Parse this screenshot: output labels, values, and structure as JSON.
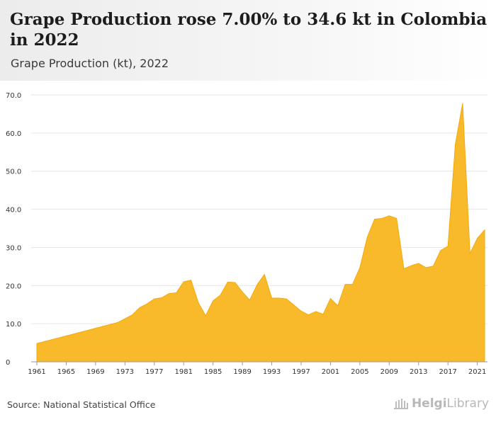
{
  "header": {
    "title": "Grape Production rose 7.00% to 34.6 kt in Colombia in 2022",
    "subtitle": "Grape Production (kt), 2022"
  },
  "footer": {
    "source": "Source: National Statistical Office",
    "brand_bold": "Helgi",
    "brand_light": "Library"
  },
  "colors": {
    "area_fill": "#F8BA2A",
    "area_stroke": "#F2A90E",
    "grid": "#e6e6e6",
    "baseline": "#9a9a9a"
  },
  "chart_data": {
    "type": "area",
    "title": "Grape Production (kt), 2022",
    "xlabel": "",
    "ylabel": "",
    "ylim": [
      0,
      70
    ],
    "yticks": [
      "0",
      "10.0",
      "20.0",
      "30.0",
      "40.0",
      "50.0",
      "60.0",
      "70.0"
    ],
    "xticks": [
      "1961",
      "1965",
      "1969",
      "1973",
      "1977",
      "1981",
      "1985",
      "1989",
      "1993",
      "1997",
      "2001",
      "2005",
      "2009",
      "2013",
      "2017",
      "2021"
    ],
    "grid": true,
    "x": [
      1961,
      1962,
      1963,
      1964,
      1965,
      1966,
      1967,
      1968,
      1969,
      1970,
      1971,
      1972,
      1973,
      1974,
      1975,
      1976,
      1977,
      1978,
      1979,
      1980,
      1981,
      1982,
      1983,
      1984,
      1985,
      1986,
      1987,
      1988,
      1989,
      1990,
      1991,
      1992,
      1993,
      1994,
      1995,
      1996,
      1997,
      1998,
      1999,
      2000,
      2001,
      2002,
      2003,
      2004,
      2005,
      2006,
      2007,
      2008,
      2009,
      2010,
      2011,
      2012,
      2013,
      2014,
      2015,
      2016,
      2017,
      2018,
      2019,
      2020,
      2021,
      2022
    ],
    "values": [
      4.8,
      5.3,
      5.8,
      6.3,
      6.8,
      7.3,
      7.8,
      8.3,
      8.8,
      9.3,
      9.8,
      10.3,
      11.3,
      12.3,
      14.2,
      15.2,
      16.5,
      16.8,
      17.9,
      18.1,
      21.0,
      21.4,
      15.5,
      12.1,
      16.0,
      17.5,
      20.9,
      20.8,
      18.3,
      16.2,
      20.2,
      22.9,
      16.7,
      16.7,
      16.5,
      14.9,
      13.3,
      12.3,
      13.2,
      12.5,
      16.6,
      14.7,
      20.3,
      20.3,
      24.7,
      32.6,
      37.4,
      37.6,
      38.3,
      37.6,
      24.4,
      25.2,
      25.8,
      24.7,
      25.1,
      29.2,
      30.3,
      57.0,
      67.8,
      28.4,
      32.4,
      34.6
    ]
  }
}
